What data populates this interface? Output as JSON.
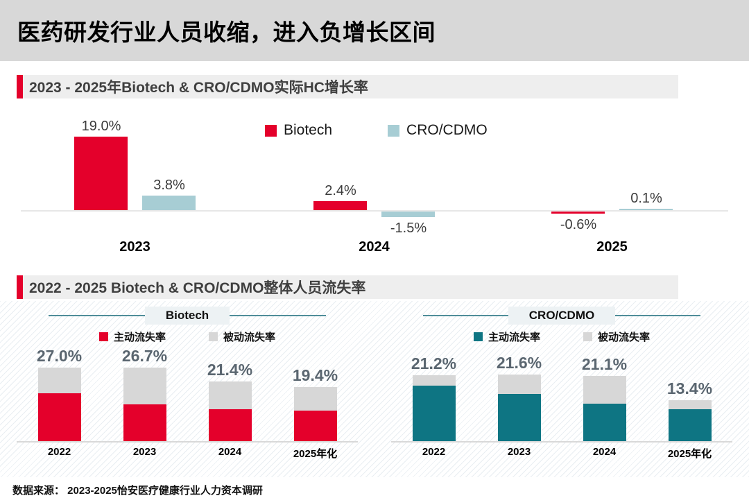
{
  "page": {
    "title": "医药研发行业人员收缩，进入负增长区间",
    "source": "数据来源： 2023-2025怡安医疗健康行业人力资本调研"
  },
  "sections": [
    {
      "title": "2023 - 2025年Biotech & CRO/CDMO实际HC增长率"
    },
    {
      "title": "2022 - 2025 Biotech & CRO/CDMO整体人员流失率"
    }
  ],
  "colors": {
    "red": "#e4002b",
    "light_blue": "#a7cdd4",
    "teal": "#0e7583",
    "gray_bar": "#d7d7d7",
    "banner_bg": "#d8d8d8",
    "header_bg": "#eeeeee",
    "label_slate": "#5a6670",
    "caption_line": "#4f8d99"
  },
  "chart_data": [
    {
      "id": "hc-growth",
      "type": "bar",
      "title": "2023 - 2025年Biotech & CRO/CDMO实际HC增长率",
      "unit": "%",
      "categories": [
        "2023",
        "2024",
        "2025"
      ],
      "series": [
        {
          "name": "Biotech",
          "color": "#e4002b",
          "values": [
            19.0,
            2.4,
            -0.6
          ],
          "labels": [
            "19.0%",
            "2.4%",
            "-0.6%"
          ]
        },
        {
          "name": "CRO/CDMO",
          "color": "#a7cdd4",
          "values": [
            3.8,
            -1.5,
            0.1
          ],
          "labels": [
            "3.8%",
            "-1.5%",
            "0.1%"
          ]
        }
      ],
      "baseline": 0,
      "grid": false,
      "legend_position": "top-center"
    },
    {
      "id": "biotech-attrition",
      "type": "stacked-bar",
      "panel_label": "Biotech",
      "unit": "%",
      "categories": [
        "2022",
        "2023",
        "2024",
        "2025年化"
      ],
      "series": [
        {
          "name": "主动流失率",
          "color": "#e4002b",
          "values": [
            17.6,
            13.4,
            11.4,
            10.9
          ]
        },
        {
          "name": "被动流失率",
          "color": "#d7d7d7",
          "values": [
            9.4,
            13.3,
            10.0,
            8.5
          ]
        }
      ],
      "totals": [
        "27.0%",
        "26.7%",
        "21.4%",
        "19.4%"
      ],
      "grid": false,
      "legend_position": "top-center"
    },
    {
      "id": "cro-cdmo-attrition",
      "type": "stacked-bar",
      "panel_label": "CRO/CDMO",
      "unit": "%",
      "categories": [
        "2022",
        "2023",
        "2024",
        "2025年化"
      ],
      "series": [
        {
          "name": "主动流失率",
          "color": "#0e7583",
          "values": [
            17.9,
            15.3,
            12.2,
            10.4
          ]
        },
        {
          "name": "被动流失率",
          "color": "#d7d7d7",
          "values": [
            3.3,
            6.3,
            8.9,
            3.0
          ]
        }
      ],
      "totals": [
        "21.2%",
        "21.6%",
        "21.1%",
        "13.4%"
      ],
      "grid": false,
      "legend_position": "top-center"
    }
  ]
}
